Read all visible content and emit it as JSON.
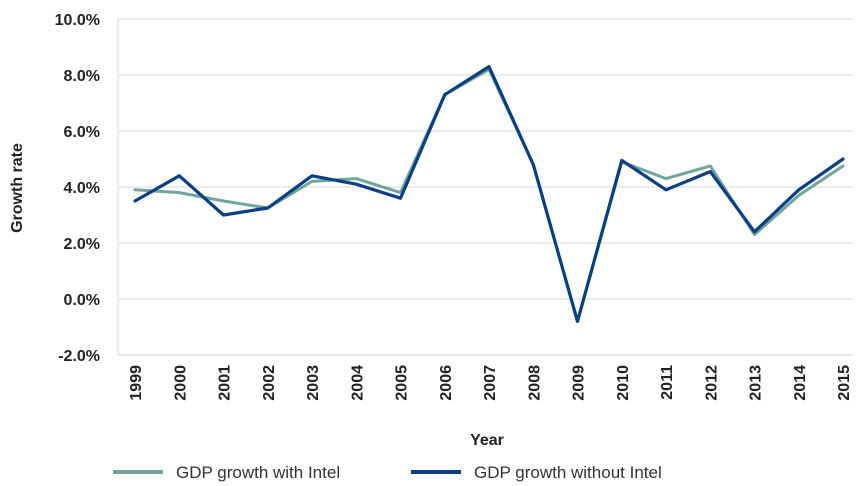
{
  "chart_data": {
    "type": "line",
    "x": [
      "1999",
      "2000",
      "2001",
      "2002",
      "2003",
      "2004",
      "2005",
      "2006",
      "2007",
      "2008",
      "2009",
      "2010",
      "2011",
      "2012",
      "2013",
      "2014",
      "2015"
    ],
    "series": [
      {
        "name": "GDP growth with Intel",
        "color": "#6fa59c",
        "values": [
          3.9,
          3.8,
          3.5,
          3.25,
          4.2,
          4.3,
          3.8,
          7.3,
          8.2,
          4.8,
          -0.8,
          4.9,
          4.3,
          4.75,
          2.3,
          3.7,
          4.75
        ]
      },
      {
        "name": "GDP growth without Intel",
        "color": "#0a3f84",
        "values": [
          3.5,
          4.4,
          3.0,
          3.25,
          4.4,
          4.1,
          3.6,
          7.3,
          8.3,
          4.8,
          -0.8,
          4.95,
          3.9,
          4.55,
          2.4,
          3.9,
          5.0
        ]
      }
    ],
    "title": "",
    "xlabel": "Year",
    "ylabel": "Growth rate",
    "ylim": [
      -2,
      10
    ],
    "yticks": [
      -2,
      0,
      2,
      4,
      6,
      8,
      10
    ],
    "ytick_labels": [
      "-2.0%",
      "0.0%",
      "2.0%",
      "4.0%",
      "6.0%",
      "8.0%",
      "10.0%"
    ],
    "grid": "horizontal",
    "legend_position": "bottom"
  }
}
